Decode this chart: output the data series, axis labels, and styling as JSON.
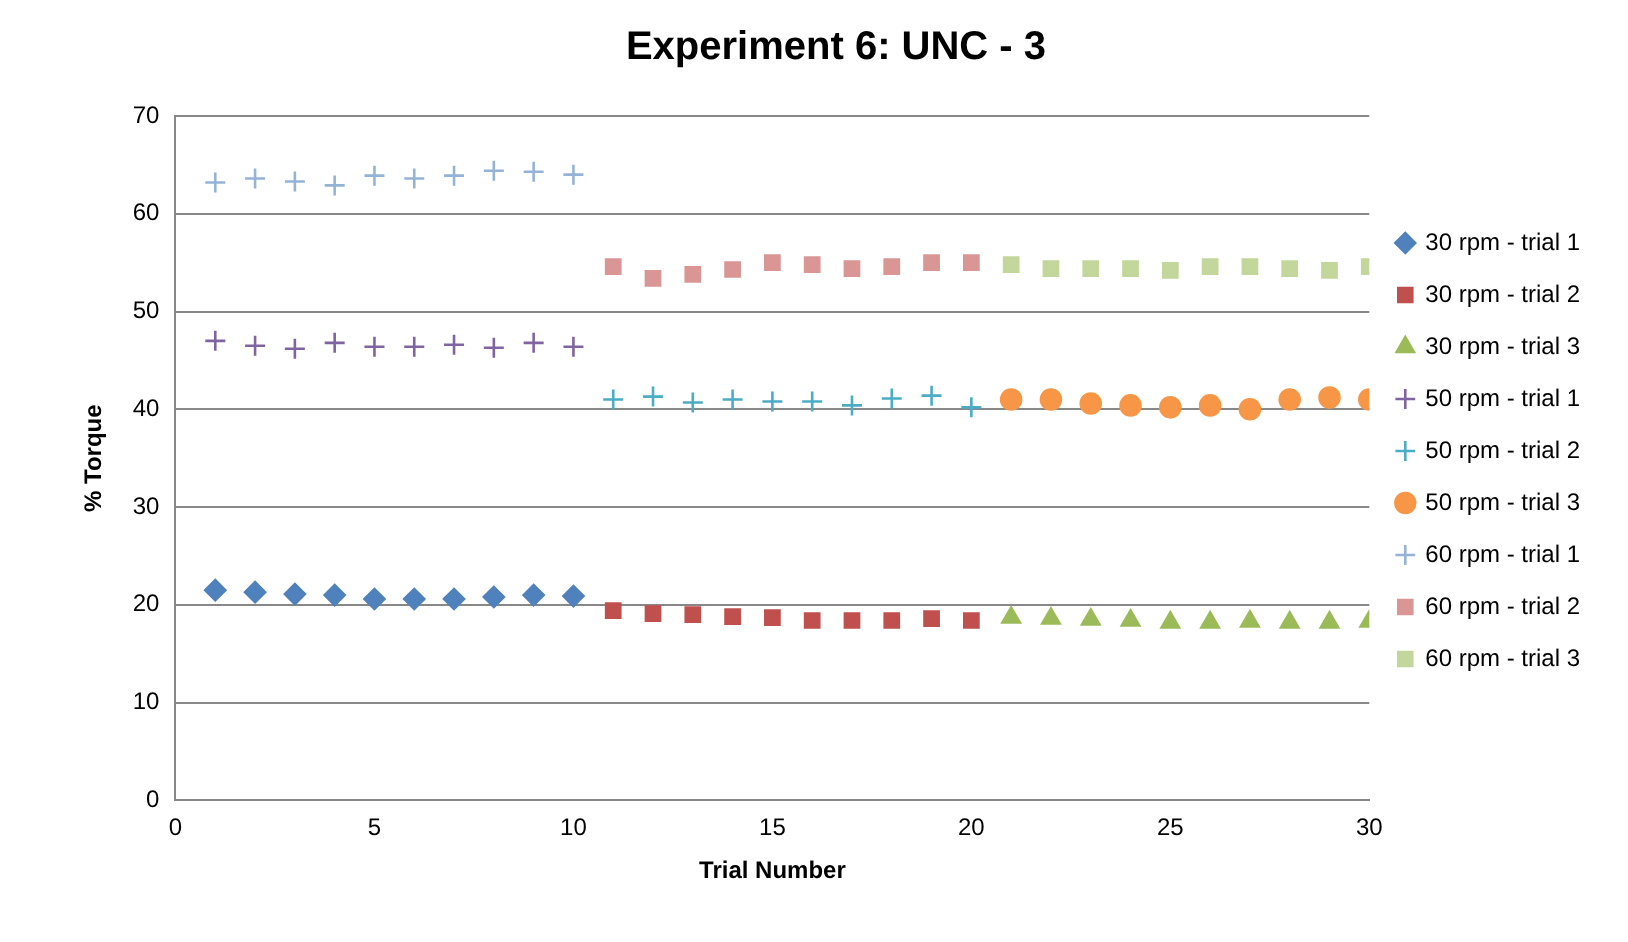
{
  "chart_data": {
    "type": "scatter",
    "title": "Experiment 6: UNC - 3",
    "xlabel": "Trial Number",
    "ylabel": "% Torque",
    "xlim": [
      0,
      30
    ],
    "xticks": [
      0,
      5,
      10,
      15,
      20,
      25,
      30
    ],
    "ylim": [
      0,
      70
    ],
    "yticks": [
      0,
      10,
      20,
      30,
      40,
      50,
      60,
      70
    ],
    "grid": "y",
    "legend": "right",
    "series": [
      {
        "name": "30 rpm - trial 1",
        "color": "#4f81bd",
        "marker": "diamond",
        "x": [
          1,
          2,
          3,
          4,
          5,
          6,
          7,
          8,
          9,
          10
        ],
        "values": [
          21.5,
          21.3,
          21.1,
          21.0,
          20.6,
          20.6,
          20.6,
          20.8,
          21.0,
          20.9
        ]
      },
      {
        "name": "30 rpm - trial 2",
        "color": "#c0504d",
        "marker": "square",
        "x": [
          11,
          12,
          13,
          14,
          15,
          16,
          17,
          18,
          19,
          20
        ],
        "values": [
          19.4,
          19.1,
          19.0,
          18.8,
          18.7,
          18.4,
          18.4,
          18.4,
          18.6,
          18.4
        ]
      },
      {
        "name": "30 rpm - trial 3",
        "color": "#9bbb59",
        "marker": "triangle",
        "x": [
          21,
          22,
          23,
          24,
          25,
          26,
          27,
          28,
          29,
          30
        ],
        "values": [
          18.7,
          18.6,
          18.5,
          18.4,
          18.2,
          18.2,
          18.3,
          18.2,
          18.2,
          18.3
        ]
      },
      {
        "name": "50 rpm - trial 1",
        "color": "#8064a2",
        "marker": "cross",
        "x": [
          1,
          2,
          3,
          4,
          5,
          6,
          7,
          8,
          9,
          10
        ],
        "values": [
          47.0,
          46.5,
          46.2,
          46.8,
          46.4,
          46.4,
          46.6,
          46.3,
          46.8,
          46.4
        ]
      },
      {
        "name": "50 rpm - trial 2",
        "color": "#4bacc6",
        "marker": "cross",
        "x": [
          11,
          12,
          13,
          14,
          15,
          16,
          17,
          18,
          19,
          20
        ],
        "values": [
          41.0,
          41.3,
          40.7,
          41.0,
          40.8,
          40.8,
          40.4,
          41.1,
          41.4,
          40.2
        ]
      },
      {
        "name": "50 rpm - trial 3",
        "color": "#f79646",
        "marker": "circle",
        "x": [
          21,
          22,
          23,
          24,
          25,
          26,
          27,
          28,
          29,
          30
        ],
        "values": [
          41.0,
          41.0,
          40.6,
          40.4,
          40.2,
          40.4,
          40.0,
          41.0,
          41.2,
          41.0
        ]
      },
      {
        "name": "60 rpm - trial 1",
        "color": "#95b3d7",
        "marker": "cross",
        "x": [
          1,
          2,
          3,
          4,
          5,
          6,
          7,
          8,
          9,
          10
        ],
        "values": [
          63.2,
          63.6,
          63.3,
          62.9,
          63.9,
          63.6,
          63.9,
          64.4,
          64.3,
          64.0
        ]
      },
      {
        "name": "60 rpm - trial 2",
        "color": "#d99694",
        "marker": "square",
        "x": [
          11,
          12,
          13,
          14,
          15,
          16,
          17,
          18,
          19,
          20
        ],
        "values": [
          54.6,
          53.4,
          53.8,
          54.3,
          55.0,
          54.8,
          54.4,
          54.6,
          55.0,
          55.0
        ]
      },
      {
        "name": "60 rpm - trial 3",
        "color": "#c3d69b",
        "marker": "square",
        "x": [
          21,
          22,
          23,
          24,
          25,
          26,
          27,
          28,
          29,
          30
        ],
        "values": [
          54.8,
          54.4,
          54.4,
          54.4,
          54.2,
          54.6,
          54.6,
          54.4,
          54.2,
          54.6
        ]
      }
    ]
  }
}
